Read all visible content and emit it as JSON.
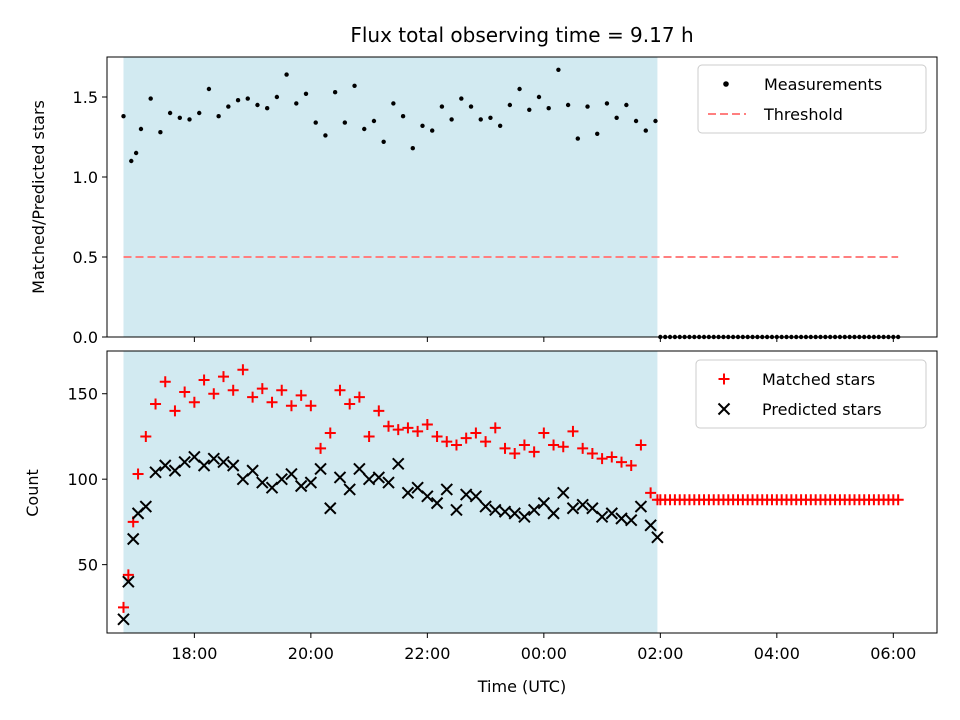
{
  "chart_data": [
    {
      "type": "scatter",
      "title": "Flux total observing time = 9.17 h",
      "xlabel": "",
      "ylabel": "Matched/Predicted stars",
      "ylim": [
        0.0,
        1.75
      ],
      "yticks": [
        "0.0",
        "0.5",
        "1.0",
        "1.5"
      ],
      "xlim": [
        "2000-01-01T16:30",
        "2000-01-02T06:45"
      ],
      "grid": false,
      "legend_position": "top-right",
      "shaded_interval": [
        "2000-01-01T16:47",
        "2000-01-02T01:57"
      ],
      "shade_color": "#add8e6",
      "series": [
        {
          "name": "Measurements",
          "marker": "dot",
          "color": "#000000",
          "x": [
            "2000-01-01T16:47",
            "2000-01-01T16:55",
            "2000-01-01T17:00",
            "2000-01-01T17:05",
            "2000-01-01T17:15",
            "2000-01-01T17:25",
            "2000-01-01T17:35",
            "2000-01-01T17:45",
            "2000-01-01T17:55",
            "2000-01-01T18:05",
            "2000-01-01T18:15",
            "2000-01-01T18:25",
            "2000-01-01T18:35",
            "2000-01-01T18:45",
            "2000-01-01T18:55",
            "2000-01-01T19:05",
            "2000-01-01T19:15",
            "2000-01-01T19:25",
            "2000-01-01T19:35",
            "2000-01-01T19:45",
            "2000-01-01T19:55",
            "2000-01-01T20:05",
            "2000-01-01T20:15",
            "2000-01-01T20:25",
            "2000-01-01T20:35",
            "2000-01-01T20:45",
            "2000-01-01T20:55",
            "2000-01-01T21:05",
            "2000-01-01T21:15",
            "2000-01-01T21:25",
            "2000-01-01T21:35",
            "2000-01-01T21:45",
            "2000-01-01T21:55",
            "2000-01-01T22:05",
            "2000-01-01T22:15",
            "2000-01-01T22:25",
            "2000-01-01T22:35",
            "2000-01-01T22:45",
            "2000-01-01T22:55",
            "2000-01-01T23:05",
            "2000-01-01T23:15",
            "2000-01-01T23:25",
            "2000-01-01T23:35",
            "2000-01-01T23:45",
            "2000-01-01T23:55",
            "2000-01-02T00:05",
            "2000-01-02T00:15",
            "2000-01-02T00:25",
            "2000-01-02T00:35",
            "2000-01-02T00:45",
            "2000-01-02T00:55",
            "2000-01-02T01:05",
            "2000-01-02T01:15",
            "2000-01-02T01:25",
            "2000-01-02T01:35",
            "2000-01-02T01:45",
            "2000-01-02T01:55"
          ],
          "y": [
            1.38,
            1.1,
            1.15,
            1.3,
            1.49,
            1.28,
            1.4,
            1.37,
            1.36,
            1.4,
            1.55,
            1.38,
            1.44,
            1.48,
            1.49,
            1.45,
            1.43,
            1.5,
            1.64,
            1.46,
            1.52,
            1.34,
            1.26,
            1.53,
            1.34,
            1.57,
            1.3,
            1.35,
            1.22,
            1.46,
            1.38,
            1.18,
            1.32,
            1.29,
            1.44,
            1.36,
            1.49,
            1.44,
            1.36,
            1.37,
            1.32,
            1.45,
            1.55,
            1.42,
            1.5,
            1.43,
            1.67,
            1.45,
            1.24,
            1.44,
            1.27,
            1.46,
            1.37,
            1.45,
            1.35,
            1.29,
            1.35
          ]
        },
        {
          "name": "",
          "marker": "dot",
          "color": "#000000",
          "x_start": "2000-01-02T02:00",
          "x_end": "2000-01-02T06:05",
          "count": 50,
          "y_constant": 0.0
        },
        {
          "name": "Threshold",
          "line_style": "dashed",
          "color": "#ff7f7f",
          "x": [
            "2000-01-01T16:47",
            "2000-01-02T06:05"
          ],
          "y": [
            0.5,
            0.5
          ]
        }
      ]
    },
    {
      "type": "scatter",
      "title": "",
      "xlabel": "Time (UTC)",
      "ylabel": "Count",
      "ylim": [
        10,
        175
      ],
      "yticks": [
        "50",
        "100",
        "150"
      ],
      "xlim": [
        "2000-01-01T16:30",
        "2000-01-02T06:45"
      ],
      "xticks": [
        "18:00",
        "20:00",
        "22:00",
        "00:00",
        "02:00",
        "04:00",
        "06:00"
      ],
      "grid": false,
      "legend_position": "top-right",
      "shaded_interval": [
        "2000-01-01T16:47",
        "2000-01-02T01:57"
      ],
      "shade_color": "#add8e6",
      "series": [
        {
          "name": "Matched stars",
          "marker": "plus",
          "color": "#ff0000",
          "x": [
            "2000-01-01T16:47",
            "2000-01-01T16:52",
            "2000-01-01T16:57",
            "2000-01-01T17:02",
            "2000-01-01T17:10",
            "2000-01-01T17:20",
            "2000-01-01T17:30",
            "2000-01-01T17:40",
            "2000-01-01T17:50",
            "2000-01-01T18:00",
            "2000-01-01T18:10",
            "2000-01-01T18:20",
            "2000-01-01T18:30",
            "2000-01-01T18:40",
            "2000-01-01T18:50",
            "2000-01-01T19:00",
            "2000-01-01T19:10",
            "2000-01-01T19:20",
            "2000-01-01T19:30",
            "2000-01-01T19:40",
            "2000-01-01T19:50",
            "2000-01-01T20:00",
            "2000-01-01T20:10",
            "2000-01-01T20:20",
            "2000-01-01T20:30",
            "2000-01-01T20:40",
            "2000-01-01T20:50",
            "2000-01-01T21:00",
            "2000-01-01T21:10",
            "2000-01-01T21:20",
            "2000-01-01T21:30",
            "2000-01-01T21:40",
            "2000-01-01T21:50",
            "2000-01-01T22:00",
            "2000-01-01T22:10",
            "2000-01-01T22:20",
            "2000-01-01T22:30",
            "2000-01-01T22:40",
            "2000-01-01T22:50",
            "2000-01-01T23:00",
            "2000-01-01T23:10",
            "2000-01-01T23:20",
            "2000-01-01T23:30",
            "2000-01-01T23:40",
            "2000-01-01T23:50",
            "2000-01-02T00:00",
            "2000-01-02T00:10",
            "2000-01-02T00:20",
            "2000-01-02T00:30",
            "2000-01-02T00:40",
            "2000-01-02T00:50",
            "2000-01-02T01:00",
            "2000-01-02T01:10",
            "2000-01-02T01:20",
            "2000-01-02T01:30",
            "2000-01-02T01:40",
            "2000-01-02T01:50",
            "2000-01-02T01:57"
          ],
          "y": [
            25,
            44,
            75,
            103,
            125,
            144,
            157,
            140,
            151,
            145,
            158,
            150,
            160,
            152,
            164,
            148,
            153,
            145,
            152,
            143,
            149,
            143,
            118,
            127,
            152,
            144,
            148,
            125,
            140,
            131,
            129,
            130,
            128,
            132,
            125,
            122,
            120,
            124,
            127,
            122,
            130,
            118,
            115,
            120,
            116,
            127,
            120,
            119,
            128,
            118,
            115,
            112,
            113,
            110,
            108,
            120,
            92,
            88
          ]
        },
        {
          "name": "",
          "marker": "plus",
          "color": "#ff0000",
          "x_start": "2000-01-02T02:00",
          "x_end": "2000-01-02T06:05",
          "count": 50,
          "y_constant": 88
        },
        {
          "name": "Predicted stars",
          "marker": "x",
          "color": "#000000",
          "x": [
            "2000-01-01T16:47",
            "2000-01-01T16:52",
            "2000-01-01T16:57",
            "2000-01-01T17:02",
            "2000-01-01T17:10",
            "2000-01-01T17:20",
            "2000-01-01T17:30",
            "2000-01-01T17:40",
            "2000-01-01T17:50",
            "2000-01-01T18:00",
            "2000-01-01T18:10",
            "2000-01-01T18:20",
            "2000-01-01T18:30",
            "2000-01-01T18:40",
            "2000-01-01T18:50",
            "2000-01-01T19:00",
            "2000-01-01T19:10",
            "2000-01-01T19:20",
            "2000-01-01T19:30",
            "2000-01-01T19:40",
            "2000-01-01T19:50",
            "2000-01-01T20:00",
            "2000-01-01T20:10",
            "2000-01-01T20:20",
            "2000-01-01T20:30",
            "2000-01-01T20:40",
            "2000-01-01T20:50",
            "2000-01-01T21:00",
            "2000-01-01T21:10",
            "2000-01-01T21:20",
            "2000-01-01T21:30",
            "2000-01-01T21:40",
            "2000-01-01T21:50",
            "2000-01-01T22:00",
            "2000-01-01T22:10",
            "2000-01-01T22:20",
            "2000-01-01T22:30",
            "2000-01-01T22:40",
            "2000-01-01T22:50",
            "2000-01-01T23:00",
            "2000-01-01T23:10",
            "2000-01-01T23:20",
            "2000-01-01T23:30",
            "2000-01-01T23:40",
            "2000-01-01T23:50",
            "2000-01-02T00:00",
            "2000-01-02T00:10",
            "2000-01-02T00:20",
            "2000-01-02T00:30",
            "2000-01-02T00:40",
            "2000-01-02T00:50",
            "2000-01-02T01:00",
            "2000-01-02T01:10",
            "2000-01-02T01:20",
            "2000-01-02T01:30",
            "2000-01-02T01:40",
            "2000-01-02T01:50",
            "2000-01-02T01:57"
          ],
          "y": [
            18,
            40,
            65,
            80,
            84,
            104,
            108,
            105,
            110,
            113,
            108,
            112,
            110,
            108,
            100,
            105,
            98,
            95,
            100,
            103,
            96,
            98,
            106,
            83,
            101,
            94,
            106,
            100,
            101,
            98,
            109,
            92,
            95,
            90,
            86,
            94,
            82,
            91,
            90,
            84,
            82,
            81,
            80,
            78,
            82,
            86,
            80,
            92,
            83,
            85,
            83,
            78,
            80,
            77,
            76,
            84,
            73,
            66
          ]
        }
      ]
    }
  ]
}
